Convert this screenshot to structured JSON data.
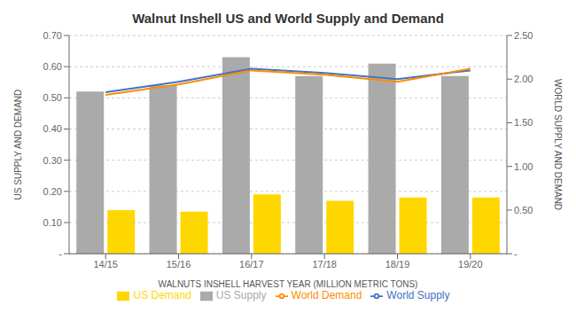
{
  "chart_data": {
    "type": "bar",
    "title": "Walnut Inshell US and World Supply and Demand",
    "xlabel": "WALNUTS INSHELL HARVEST YEAR (MILLION METRIC TONS)",
    "ylabel": "US SUPPLY AND DEMAND",
    "y2label": "WORLD SUPPLY AND DEMAND",
    "categories": [
      "14/15",
      "15/16",
      "16/17",
      "17/18",
      "18/19",
      "19/20"
    ],
    "series": [
      {
        "name": "US Supply",
        "type": "bar",
        "color": "#aaaaaa",
        "values": [
          0.52,
          0.54,
          0.63,
          0.57,
          0.61,
          0.57
        ]
      },
      {
        "name": "US Demand",
        "type": "bar",
        "color": "#FFD700",
        "values": [
          0.14,
          0.135,
          0.19,
          0.17,
          0.18,
          0.18
        ]
      },
      {
        "name": "World Supply",
        "type": "line",
        "axis": "y2",
        "color": "#4472C4",
        "values": [
          1.85,
          1.97,
          2.12,
          2.07,
          2.0,
          2.1
        ]
      },
      {
        "name": "World Demand",
        "type": "line",
        "axis": "y2",
        "color": "#FF8C00",
        "values": [
          1.82,
          1.94,
          2.1,
          2.05,
          1.97,
          2.12
        ]
      }
    ],
    "ylim": [
      0,
      0.7
    ],
    "yticks": [
      {
        "value": 0.0,
        "label": "-"
      },
      {
        "value": 0.1,
        "label": "0.10"
      },
      {
        "value": 0.2,
        "label": "0.20"
      },
      {
        "value": 0.3,
        "label": "0.30"
      },
      {
        "value": 0.4,
        "label": "0.40"
      },
      {
        "value": 0.5,
        "label": "0.50"
      },
      {
        "value": 0.6,
        "label": "0.60"
      },
      {
        "value": 0.7,
        "label": "0.70"
      }
    ],
    "y2lim": [
      0,
      2.5
    ],
    "y2ticks": [
      {
        "value": 0.0,
        "label": "-"
      },
      {
        "value": 0.5,
        "label": "0.50"
      },
      {
        "value": 1.0,
        "label": "1.00"
      },
      {
        "value": 1.5,
        "label": "1.50"
      },
      {
        "value": 2.0,
        "label": "2.00"
      },
      {
        "value": 2.5,
        "label": "2.50"
      }
    ],
    "grid": true,
    "legend": "bottom"
  }
}
